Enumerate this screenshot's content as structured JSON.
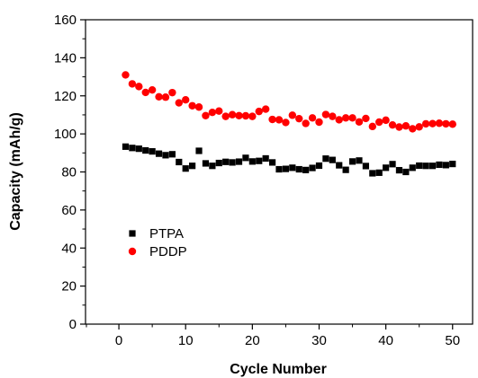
{
  "chart_data": {
    "type": "scatter",
    "title": "",
    "xlabel": "Cycle Number",
    "ylabel": "Capacity (mAh/g)",
    "xlim": [
      -5,
      53
    ],
    "ylim": [
      0,
      160
    ],
    "xticks": [
      0,
      10,
      20,
      30,
      40,
      50
    ],
    "yticks": [
      0,
      20,
      40,
      60,
      80,
      100,
      120,
      140,
      160
    ],
    "grid": false,
    "legend": "middle-left",
    "series": [
      {
        "name": "PTPA",
        "marker": "square",
        "color": "#000000",
        "x": [
          1,
          2,
          3,
          4,
          5,
          6,
          7,
          8,
          9,
          10,
          11,
          12,
          13,
          14,
          15,
          16,
          17,
          18,
          19,
          20,
          21,
          22,
          23,
          24,
          25,
          26,
          27,
          28,
          29,
          30,
          31,
          32,
          33,
          34,
          35,
          36,
          37,
          38,
          39,
          40,
          41,
          42,
          43,
          44,
          45,
          46,
          47,
          48,
          49,
          50
        ],
        "y": [
          93.3,
          92.6,
          92.2,
          91.3,
          90.8,
          89.6,
          88.8,
          89.3,
          85.2,
          81.8,
          83.2,
          91.1,
          84.5,
          83.2,
          84.7,
          85.3,
          85.0,
          85.4,
          87.4,
          85.5,
          85.8,
          87.1,
          85.0,
          81.4,
          81.6,
          82.2,
          81.4,
          81.0,
          82.1,
          83.3,
          87.0,
          86.3,
          83.5,
          81.1,
          85.5,
          86.0,
          83.1,
          79.3,
          79.6,
          82.2,
          84.1,
          80.9,
          80.0,
          82.2,
          83.3,
          83.2,
          83.2,
          83.8,
          83.6,
          84.2
        ]
      },
      {
        "name": "PDDP",
        "marker": "circle",
        "color": "#ff0000",
        "x": [
          1,
          2,
          3,
          4,
          5,
          6,
          7,
          8,
          9,
          10,
          11,
          12,
          13,
          14,
          15,
          16,
          17,
          18,
          19,
          20,
          21,
          22,
          23,
          24,
          25,
          26,
          27,
          28,
          29,
          30,
          31,
          32,
          33,
          34,
          35,
          36,
          37,
          38,
          39,
          40,
          41,
          42,
          43,
          44,
          45,
          46,
          47,
          48,
          49,
          50
        ],
        "y": [
          131.0,
          126.3,
          124.9,
          121.8,
          123.1,
          119.5,
          119.3,
          121.7,
          116.3,
          117.9,
          114.8,
          114.1,
          109.6,
          111.3,
          112.0,
          109.2,
          110.1,
          109.6,
          109.5,
          109.2,
          111.8,
          113.0,
          107.6,
          107.4,
          106.0,
          109.8,
          108.0,
          105.5,
          108.4,
          106.2,
          110.2,
          109.2,
          107.4,
          108.4,
          108.4,
          106.3,
          108.1,
          103.9,
          106.2,
          107.2,
          104.7,
          103.6,
          104.2,
          102.7,
          103.7,
          105.3,
          105.4,
          105.6,
          105.3,
          105.1
        ]
      }
    ]
  }
}
